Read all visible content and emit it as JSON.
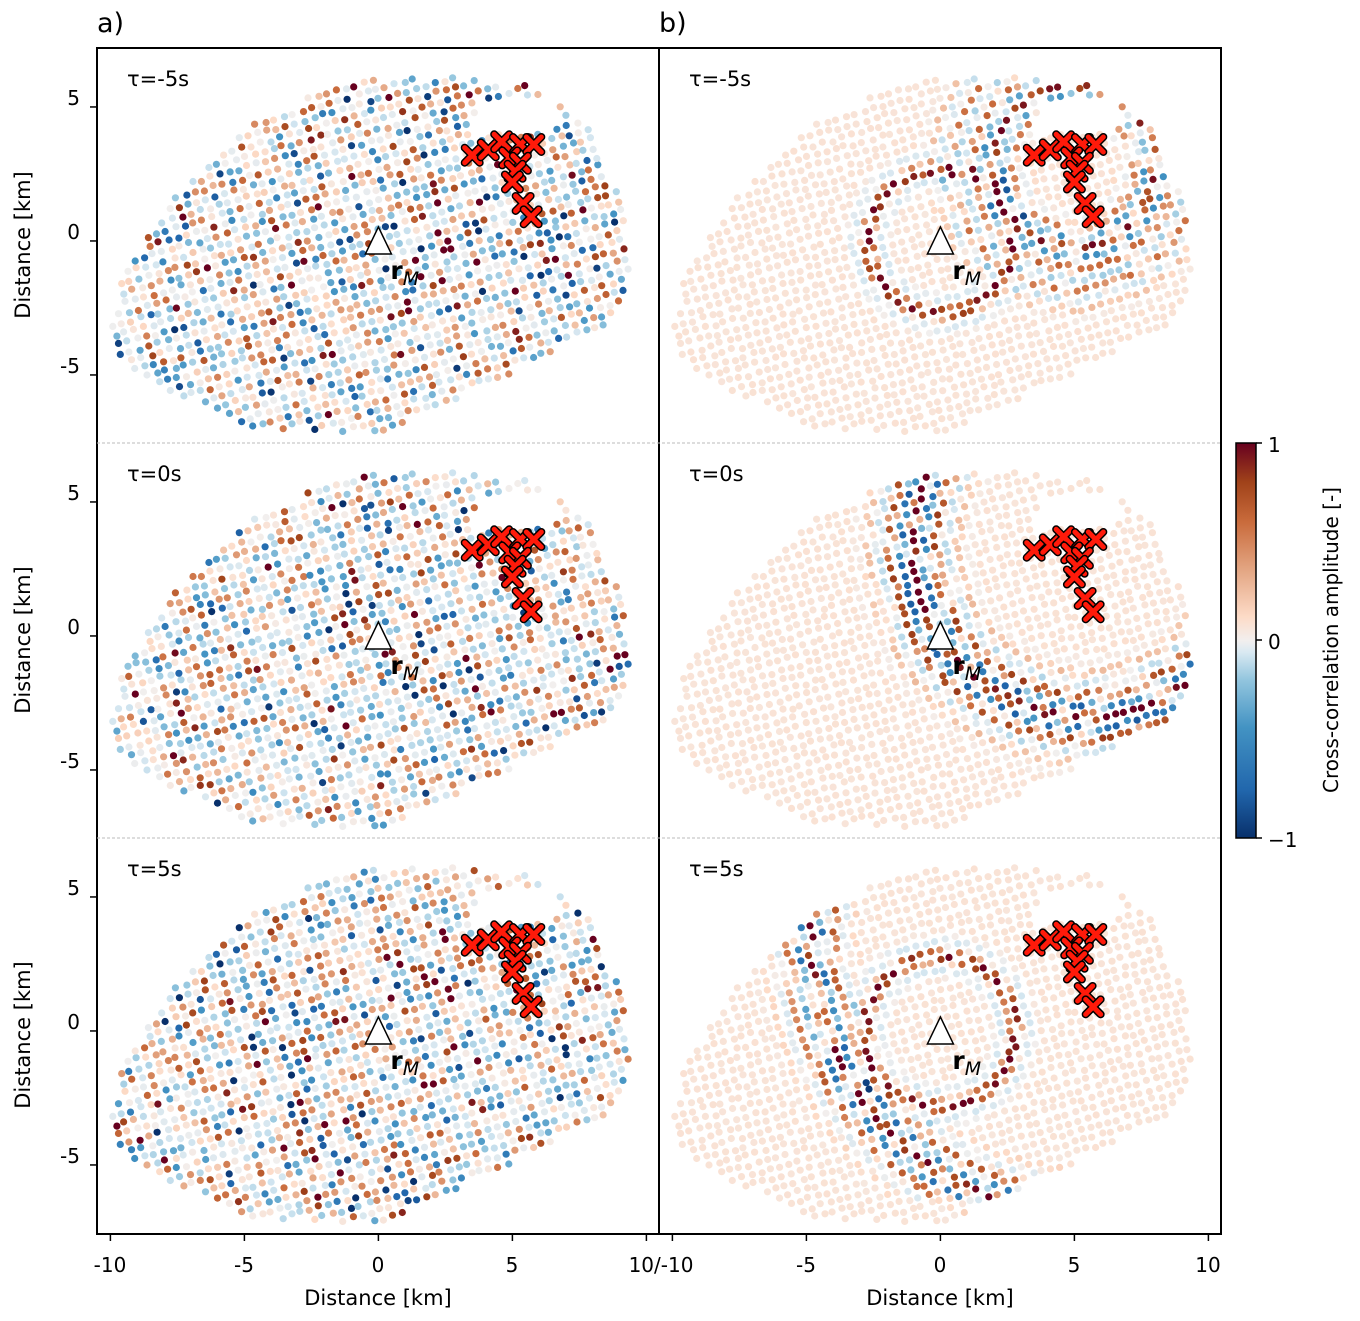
{
  "chart_data": {
    "type": "scatter",
    "panel_labels": [
      "a)",
      "b)"
    ],
    "xlabel": "Distance [km]",
    "ylabel": "Distance [km]",
    "xlim": [
      -10.5,
      10.5
    ],
    "ylim_per_row": [
      -7.6,
      7.2
    ],
    "x_ticks": [
      -5,
      0,
      5
    ],
    "x_tick_labels_left": [
      "-10",
      "-5",
      "0",
      "5"
    ],
    "x_tick_labels_shared": "10/-10",
    "x_tick_labels_right": [
      "-5",
      "0",
      "5",
      "10"
    ],
    "y_ticks": [
      5,
      0,
      -5
    ],
    "y_tick_labels": [
      "5",
      "0",
      "-5"
    ],
    "rows": [
      {
        "tau_label": "τ=-5s",
        "tau": -5
      },
      {
        "tau_label": "τ=0s",
        "tau": 0
      },
      {
        "tau_label": "τ=5s",
        "tau": 5
      }
    ],
    "columns": [
      {
        "label": "a)",
        "noise": 1.0,
        "signal": 0.55
      },
      {
        "label": "b)",
        "noise": 0.0,
        "signal": 1.0
      }
    ],
    "master_station": {
      "x": 0,
      "y": 0,
      "label_main": "r",
      "label_sub": "M"
    },
    "sources": [
      {
        "x": 3.5,
        "y": 3.2
      },
      {
        "x": 4.1,
        "y": 3.4
      },
      {
        "x": 4.6,
        "y": 3.7
      },
      {
        "x": 5.3,
        "y": 3.6
      },
      {
        "x": 5.8,
        "y": 3.6
      },
      {
        "x": 4.9,
        "y": 3.1
      },
      {
        "x": 5.3,
        "y": 2.9
      },
      {
        "x": 5.1,
        "y": 2.6
      },
      {
        "x": 5.0,
        "y": 2.2
      },
      {
        "x": 5.4,
        "y": 1.4
      },
      {
        "x": 5.7,
        "y": 0.9
      }
    ],
    "colorbar": {
      "label": "Cross-correlation amplitude [-]",
      "min": -1,
      "max": 1,
      "ticks": [
        "1",
        "0",
        "−1"
      ]
    },
    "colormap": [
      "#08306b",
      "#2166ac",
      "#4393c3",
      "#92c5de",
      "#d1e5f0",
      "#f2efee",
      "#fddbc7",
      "#e3a582",
      "#c96b3c",
      "#a1431a",
      "#67001f"
    ]
  }
}
